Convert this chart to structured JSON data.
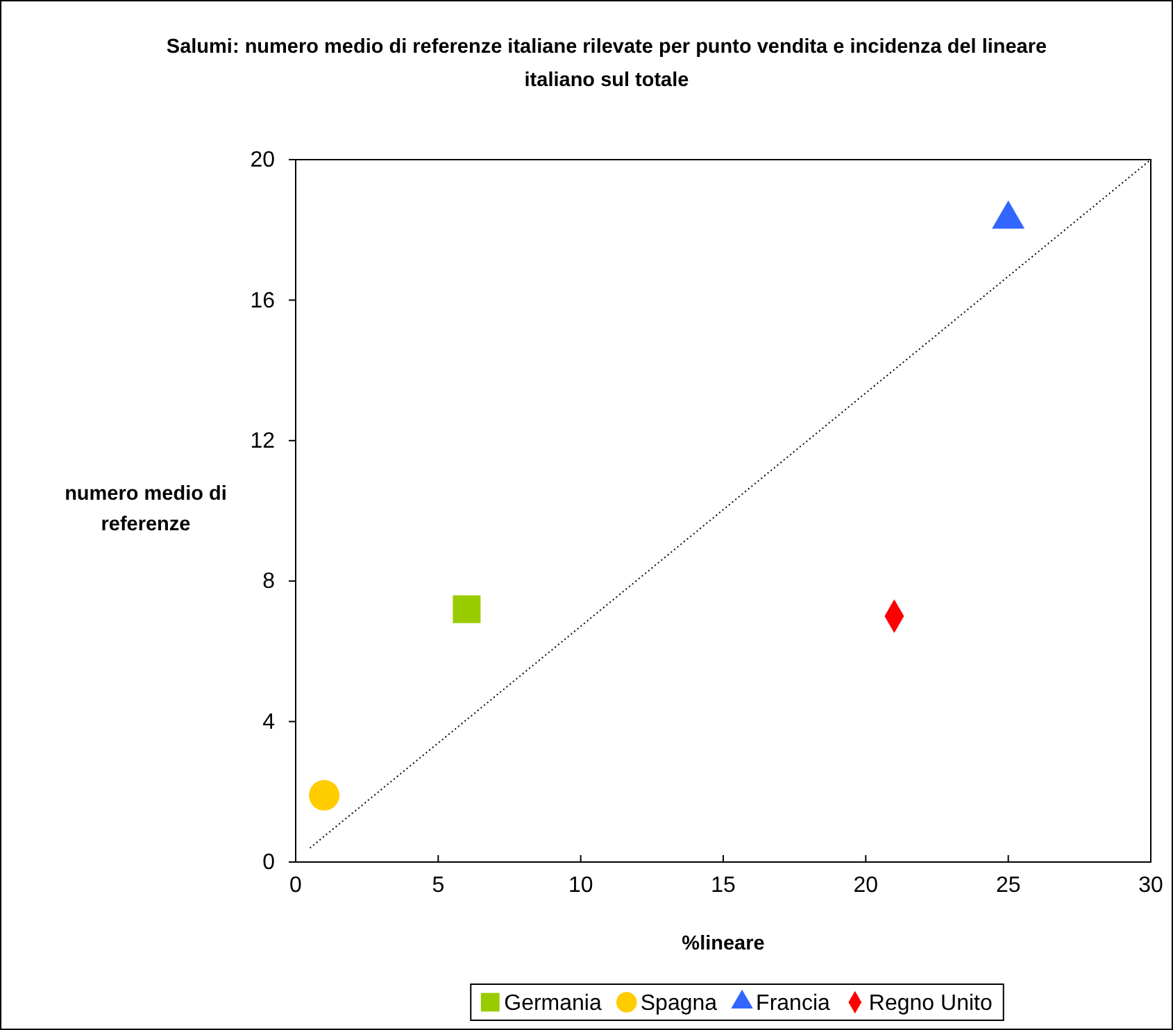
{
  "chart_data": {
    "type": "scatter",
    "title": "Salumi: numero medio di referenze italiane rilevate per punto vendita e incidenza del lineare italiano sul totale",
    "xlabel": "%lineare",
    "ylabel": "numero medio di referenze",
    "xlim": [
      0,
      30
    ],
    "xticks": [
      0,
      5,
      10,
      15,
      20,
      25,
      30
    ],
    "ylim": [
      0,
      20
    ],
    "yticks": [
      0,
      4,
      8,
      12,
      16,
      20
    ],
    "grid": false,
    "legend": "bottom",
    "series": [
      {
        "name": "Germania",
        "color": "#99cc00",
        "marker": "square",
        "x": [
          6
        ],
        "values": [
          7.2
        ]
      },
      {
        "name": "Spagna",
        "color": "#ffcc00",
        "marker": "circle",
        "x": [
          1
        ],
        "values": [
          1.9
        ]
      },
      {
        "name": "Francia",
        "color": "#3366ff",
        "marker": "triangle",
        "x": [
          25
        ],
        "values": [
          18.3
        ]
      },
      {
        "name": "Regno Unito",
        "color": "#ff0000",
        "marker": "diamond",
        "x": [
          21
        ],
        "values": [
          7
        ]
      },
      {
        "type": "line",
        "color": "#000000",
        "marker": "none",
        "line_style": "dotted",
        "x": [
          0.5,
          30
        ],
        "values": [
          0.4,
          20
        ]
      }
    ]
  }
}
